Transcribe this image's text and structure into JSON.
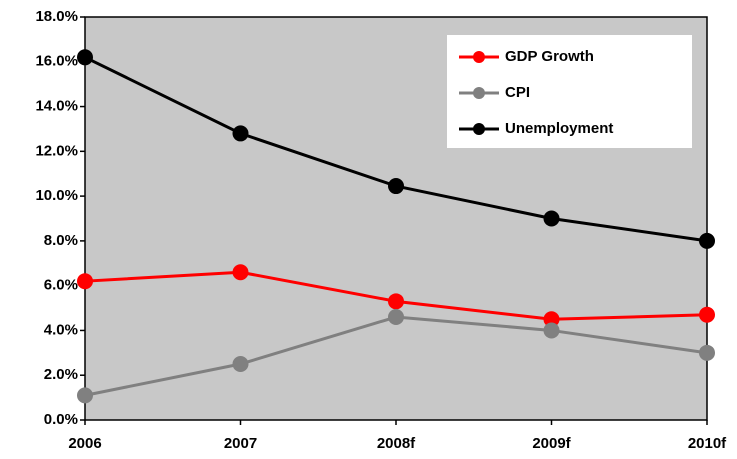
{
  "chart_data": {
    "type": "line",
    "categories": [
      "2006",
      "2007",
      "2008f",
      "2009f",
      "2010f"
    ],
    "series": [
      {
        "name": "GDP Growth",
        "color": "#ff0000",
        "values": [
          6.2,
          6.6,
          5.3,
          4.5,
          4.7
        ]
      },
      {
        "name": "CPI",
        "color": "#808080",
        "values": [
          1.1,
          2.5,
          4.6,
          4.0,
          3.0
        ]
      },
      {
        "name": "Unemployment",
        "color": "#000000",
        "values": [
          16.2,
          12.8,
          10.45,
          9.0,
          8.0
        ]
      }
    ],
    "ylim": [
      0,
      18
    ],
    "yticks": [
      {
        "value": 0,
        "label": "0.0%"
      },
      {
        "value": 2,
        "label": "2.0%"
      },
      {
        "value": 4,
        "label": "4.0%"
      },
      {
        "value": 6,
        "label": "6.0%"
      },
      {
        "value": 8,
        "label": "8.0%"
      },
      {
        "value": 10,
        "label": "10.0%"
      },
      {
        "value": 12,
        "label": "12.0%"
      },
      {
        "value": 14,
        "label": "14.0%"
      },
      {
        "value": 16,
        "label": "16.0%"
      },
      {
        "value": 18,
        "label": "18.0%"
      }
    ],
    "legend": "top-right",
    "background": "#c8c8c8"
  }
}
